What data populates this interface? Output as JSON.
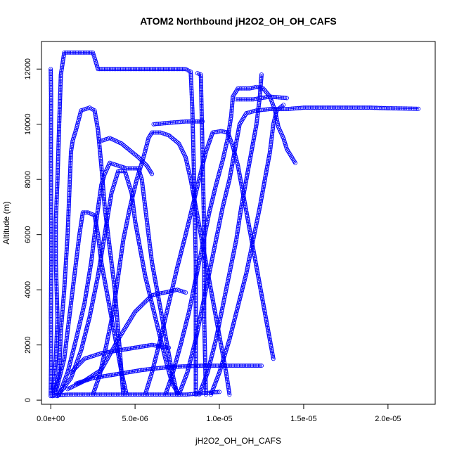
{
  "chart_data": {
    "type": "scatter",
    "title": "ATOM2 Northbound jH2O2_OH_OH_CAFS",
    "xlabel": "jH2O2_OH_OH_CAFS",
    "ylabel": "Altitude (m)",
    "xlim": [
      -5.5e-07,
      2.28e-05
    ],
    "ylim": [
      -150,
      13000
    ],
    "x_ticks": [
      0,
      5e-06,
      1e-05,
      1.5e-05,
      2e-05
    ],
    "x_tick_labels": [
      "0.0e+00",
      "5.0e-06",
      "1.0e-05",
      "1.5e-05",
      "2.0e-05"
    ],
    "y_ticks": [
      0,
      2000,
      4000,
      6000,
      8000,
      10000,
      12000
    ],
    "y_tick_labels": [
      "0",
      "2000",
      "4000",
      "6000",
      "8000",
      "10000",
      "12000"
    ],
    "grid": false,
    "marker": "open-circle",
    "color": "#0000ff",
    "series": [
      {
        "points": [
          [
            0.0,
            150
          ],
          [
            2e-08,
            1500
          ],
          [
            1e-08,
            3000
          ],
          [
            3e-08,
            5000
          ],
          [
            2e-08,
            7000
          ],
          [
            1e-08,
            9000
          ],
          [
            2e-08,
            11000
          ],
          [
            0.0,
            12000
          ]
        ]
      },
      {
        "points": [
          [
            1e-07,
            150
          ],
          [
            3e-07,
            1500
          ],
          [
            4e-07,
            3000
          ],
          [
            3e-07,
            5000
          ],
          [
            3e-07,
            6500
          ],
          [
            4e-07,
            8000
          ],
          [
            5e-07,
            10000
          ],
          [
            6e-07,
            11800
          ],
          [
            8e-07,
            12600
          ],
          [
            2.5e-06,
            12600
          ],
          [
            2.6e-06,
            12400
          ],
          [
            2.8e-06,
            12000
          ],
          [
            5e-06,
            12000
          ],
          [
            8e-06,
            12000
          ],
          [
            8.3e-06,
            11900
          ],
          [
            8.4e-06,
            10500
          ],
          [
            8.5e-06,
            8000
          ],
          [
            8.6e-06,
            5000
          ],
          [
            8.6e-06,
            2000
          ],
          [
            8.6e-06,
            200
          ]
        ]
      },
      {
        "points": [
          [
            8.7e-06,
            11850
          ],
          [
            8.9e-06,
            11800
          ],
          [
            9e-06,
            9000
          ],
          [
            9.1e-06,
            6000
          ],
          [
            9.1e-06,
            3000
          ],
          [
            9.2e-06,
            200
          ]
        ]
      },
      {
        "points": [
          [
            2e-07,
            200
          ],
          [
            5e-07,
            1000
          ],
          [
            6e-07,
            2500
          ],
          [
            8e-07,
            4000
          ],
          [
            1e-06,
            6000
          ],
          [
            1.1e-06,
            7500
          ],
          [
            1.2e-06,
            9000
          ],
          [
            1.3e-06,
            9400
          ],
          [
            1.5e-06,
            9800
          ],
          [
            1.8e-06,
            10500
          ],
          [
            2.3e-06,
            10600
          ],
          [
            2.6e-06,
            10500
          ],
          [
            2.8e-06,
            9800
          ],
          [
            3e-06,
            8500
          ],
          [
            3.2e-06,
            7000
          ],
          [
            3.5e-06,
            5500
          ],
          [
            3.8e-06,
            4000
          ],
          [
            4e-06,
            2500
          ],
          [
            4.2e-06,
            1000
          ],
          [
            4.3e-06,
            200
          ]
        ]
      },
      {
        "points": [
          [
            3e-07,
            300
          ],
          [
            8e-07,
            1500
          ],
          [
            1.1e-06,
            3000
          ],
          [
            1.4e-06,
            4500
          ],
          [
            1.7e-06,
            6000
          ],
          [
            1.9e-06,
            6800
          ],
          [
            2.2e-06,
            6800
          ],
          [
            2.6e-06,
            6700
          ],
          [
            2.8e-06,
            6000
          ],
          [
            3e-06,
            5000
          ],
          [
            3.3e-06,
            4000
          ],
          [
            3.6e-06,
            3000
          ],
          [
            3.9e-06,
            2000
          ],
          [
            4.2e-06,
            1000
          ],
          [
            4.5e-06,
            200
          ]
        ]
      },
      {
        "points": [
          [
            5e-07,
            200
          ],
          [
            1e-06,
            1000
          ],
          [
            1.5e-06,
            2200
          ],
          [
            2e-06,
            3500
          ],
          [
            2.4e-06,
            5000
          ],
          [
            2.7e-06,
            6500
          ],
          [
            3e-06,
            7800
          ],
          [
            3.2e-06,
            8200
          ],
          [
            3.5e-06,
            8600
          ],
          [
            4e-06,
            8500
          ],
          [
            4.5e-06,
            8400
          ],
          [
            5.2e-06,
            8400
          ],
          [
            5.4e-06,
            8000
          ],
          [
            5.6e-06,
            7000
          ],
          [
            5.8e-06,
            6000
          ],
          [
            6e-06,
            5000
          ],
          [
            6.3e-06,
            4000
          ],
          [
            6.6e-06,
            3000
          ],
          [
            6.9e-06,
            2000
          ],
          [
            7.2e-06,
            1000
          ],
          [
            7.5e-06,
            200
          ]
        ]
      },
      {
        "points": [
          [
            4e-07,
            150
          ],
          [
            1.2e-06,
            800
          ],
          [
            1.8e-06,
            1800
          ],
          [
            2.3e-06,
            3000
          ],
          [
            2.8e-06,
            4500
          ],
          [
            3.2e-06,
            6000
          ],
          [
            3.6e-06,
            7500
          ],
          [
            4e-06,
            8300
          ],
          [
            4.4e-06,
            8300
          ],
          [
            4.8e-06,
            7500
          ],
          [
            5e-06,
            6500
          ],
          [
            5.3e-06,
            5500
          ],
          [
            5.6e-06,
            4500
          ],
          [
            6e-06,
            3500
          ],
          [
            6.4e-06,
            2500
          ],
          [
            6.8e-06,
            1500
          ],
          [
            7.2e-06,
            600
          ],
          [
            7.6e-06,
            200
          ]
        ]
      },
      {
        "points": [
          [
            2.5e-06,
            200
          ],
          [
            2.9e-06,
            900
          ],
          [
            3.3e-06,
            2000
          ],
          [
            3.7e-06,
            3200
          ],
          [
            4e-06,
            4500
          ],
          [
            4.3e-06,
            5800
          ],
          [
            4.7e-06,
            7000
          ],
          [
            5.1e-06,
            8000
          ],
          [
            5.5e-06,
            8800
          ],
          [
            5.8e-06,
            9500
          ],
          [
            6e-06,
            9700
          ],
          [
            6.5e-06,
            9700
          ],
          [
            7e-06,
            9600
          ],
          [
            7.6e-06,
            9300
          ],
          [
            8e-06,
            8800
          ],
          [
            8.3e-06,
            8000
          ],
          [
            8.6e-06,
            7000
          ],
          [
            8.9e-06,
            6000
          ],
          [
            9.2e-06,
            5000
          ],
          [
            9.5e-06,
            4000
          ],
          [
            9.8e-06,
            3000
          ],
          [
            1.01e-05,
            2000
          ],
          [
            1.04e-05,
            1000
          ],
          [
            1.06e-05,
            200
          ]
        ]
      },
      {
        "points": [
          [
            3e-06,
            9400
          ],
          [
            3.5e-06,
            9500
          ],
          [
            4.2e-06,
            9300
          ],
          [
            4.8e-06,
            9000
          ],
          [
            5.2e-06,
            8800
          ],
          [
            5.7e-06,
            8500
          ],
          [
            6e-06,
            8200
          ]
        ]
      },
      {
        "points": [
          [
            5.6e-06,
            200
          ],
          [
            6e-06,
            1000
          ],
          [
            6.5e-06,
            2200
          ],
          [
            7e-06,
            3500
          ],
          [
            7.5e-06,
            4800
          ],
          [
            8e-06,
            6000
          ],
          [
            8.4e-06,
            7000
          ],
          [
            8.8e-06,
            8000
          ],
          [
            9.2e-06,
            9000
          ],
          [
            9.6e-06,
            9700
          ],
          [
            1.01e-05,
            9750
          ],
          [
            1.05e-05,
            9700
          ],
          [
            1.08e-05,
            9200
          ],
          [
            1.11e-05,
            8500
          ],
          [
            1.14e-05,
            7500
          ],
          [
            1.17e-05,
            6500
          ],
          [
            1.2e-05,
            5500
          ],
          [
            1.23e-05,
            4500
          ],
          [
            1.26e-05,
            3500
          ],
          [
            1.29e-05,
            2500
          ],
          [
            1.32e-05,
            1500
          ]
        ]
      },
      {
        "points": [
          [
            6.1e-06,
            10000
          ],
          [
            7e-06,
            10050
          ],
          [
            8e-06,
            10100
          ],
          [
            9e-06,
            10100
          ]
        ]
      },
      {
        "points": [
          [
            6.8e-06,
            200
          ],
          [
            7.2e-06,
            900
          ],
          [
            7.7e-06,
            2000
          ],
          [
            8.2e-06,
            3200
          ],
          [
            8.6e-06,
            4400
          ],
          [
            9e-06,
            5600
          ],
          [
            9.4e-06,
            6800
          ],
          [
            9.8e-06,
            7800
          ],
          [
            1.02e-05,
            8700
          ],
          [
            1.05e-05,
            9500
          ],
          [
            1.07e-05,
            10300
          ],
          [
            1.08e-05,
            11000
          ],
          [
            1.11e-05,
            11300
          ],
          [
            1.18e-05,
            11300
          ],
          [
            1.22e-05,
            11350
          ],
          [
            1.26e-05,
            11300
          ],
          [
            1.3e-05,
            11000
          ],
          [
            1.33e-05,
            10500
          ],
          [
            1.35e-05,
            9900
          ],
          [
            1.38e-05,
            9500
          ],
          [
            1.4e-05,
            9100
          ],
          [
            1.43e-05,
            8800
          ],
          [
            1.45e-05,
            8600
          ]
        ]
      },
      {
        "points": [
          [
            7.6e-06,
            200
          ],
          [
            8.1e-06,
            1000
          ],
          [
            8.6e-06,
            2200
          ],
          [
            9e-06,
            3400
          ],
          [
            9.4e-06,
            4600
          ],
          [
            9.8e-06,
            5800
          ],
          [
            1.02e-05,
            7000
          ],
          [
            1.06e-05,
            8000
          ],
          [
            1.09e-05,
            9000
          ],
          [
            1.12e-05,
            10000
          ],
          [
            1.16e-05,
            10400
          ],
          [
            1.22e-05,
            10500
          ],
          [
            1.3e-05,
            10550
          ],
          [
            1.4e-05,
            10550
          ],
          [
            1.5e-05,
            10600
          ],
          [
            1.6e-05,
            10600
          ],
          [
            1.7e-05,
            10600
          ],
          [
            1.8e-05,
            10600
          ],
          [
            1.9e-05,
            10600
          ],
          [
            2e-05,
            10580
          ],
          [
            2.1e-05,
            10570
          ],
          [
            2.18e-05,
            10560
          ]
        ]
      },
      {
        "points": [
          [
            8.8e-06,
            200
          ],
          [
            9.3e-06,
            1000
          ],
          [
            9.8e-06,
            2200
          ],
          [
            1.02e-05,
            3400
          ],
          [
            1.06e-05,
            4600
          ],
          [
            1.1e-05,
            5800
          ],
          [
            1.13e-05,
            7000
          ],
          [
            1.16e-05,
            8000
          ],
          [
            1.19e-05,
            9000
          ],
          [
            1.22e-05,
            10000
          ],
          [
            1.24e-05,
            11000
          ],
          [
            1.25e-05,
            11800
          ]
        ]
      },
      {
        "points": [
          [
            9.5e-06,
            200
          ],
          [
            1e-05,
            1000
          ],
          [
            1.06e-05,
            2200
          ],
          [
            1.11e-05,
            3400
          ],
          [
            1.16e-05,
            4600
          ],
          [
            1.2e-05,
            5800
          ],
          [
            1.24e-05,
            7000
          ],
          [
            1.27e-05,
            8000
          ],
          [
            1.3e-05,
            9000
          ],
          [
            1.32e-05,
            10000
          ],
          [
            1.34e-05,
            10500
          ],
          [
            1.38e-05,
            10700
          ]
        ]
      },
      {
        "points": [
          [
            1.2e-06,
            1000
          ],
          [
            2e-06,
            1500
          ],
          [
            3e-06,
            1700
          ],
          [
            4e-06,
            1800
          ],
          [
            5e-06,
            1900
          ],
          [
            6e-06,
            2000
          ],
          [
            7e-06,
            1900
          ]
        ]
      },
      {
        "points": [
          [
            1.5e-06,
            600
          ],
          [
            2.5e-06,
            800
          ],
          [
            3.5e-06,
            900
          ],
          [
            4.5e-06,
            1000
          ],
          [
            5.5e-06,
            1100
          ],
          [
            7e-06,
            1200
          ],
          [
            9e-06,
            1250
          ],
          [
            1.1e-05,
            1250
          ],
          [
            1.25e-05,
            1250
          ]
        ]
      },
      {
        "points": [
          [
            1e-06,
            400
          ],
          [
            2e-06,
            700
          ],
          [
            3e-06,
            1100
          ],
          [
            4e-06,
            2200
          ],
          [
            5e-06,
            3200
          ],
          [
            6e-06,
            3800
          ],
          [
            7.5e-06,
            4000
          ],
          [
            8e-06,
            3900
          ]
        ]
      },
      {
        "points": [
          [
            1e-07,
            150
          ],
          [
            5e-07,
            180
          ],
          [
            1e-06,
            200
          ],
          [
            2e-06,
            200
          ],
          [
            3e-06,
            200
          ],
          [
            4e-06,
            200
          ],
          [
            5e-06,
            200
          ],
          [
            6e-06,
            200
          ],
          [
            7e-06,
            200
          ],
          [
            8e-06,
            200
          ],
          [
            9e-06,
            250
          ],
          [
            1e-05,
            300
          ]
        ]
      },
      {
        "points": [
          [
            1.1e-05,
            10900
          ],
          [
            1.15e-05,
            10900
          ],
          [
            1.2e-05,
            10900
          ],
          [
            1.25e-05,
            10950
          ],
          [
            1.3e-05,
            11000
          ],
          [
            1.4e-05,
            10950
          ]
        ]
      }
    ]
  }
}
